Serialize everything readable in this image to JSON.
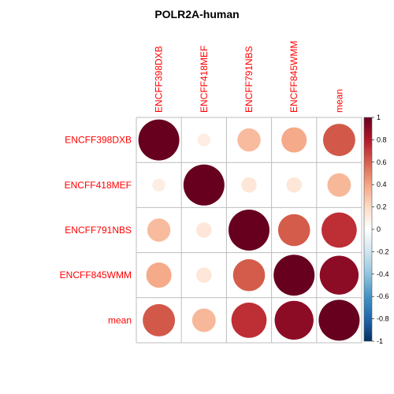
{
  "chart_data": {
    "type": "heatmap",
    "subtype": "correlation-circle",
    "title": "POLR2A-human",
    "row_labels": [
      "ENCFF398DXB",
      "ENCFF418MEF",
      "ENCFF791NBS",
      "ENCFF845WMM",
      "mean"
    ],
    "col_labels": [
      "ENCFF398DXB",
      "ENCFF418MEF",
      "ENCFF791NBS",
      "ENCFF845WMM",
      "mean"
    ],
    "values": [
      [
        1.0,
        0.1,
        0.32,
        0.38,
        0.62
      ],
      [
        0.1,
        1.0,
        0.14,
        0.14,
        0.33
      ],
      [
        0.32,
        0.14,
        1.0,
        0.61,
        0.74
      ],
      [
        0.38,
        0.14,
        0.61,
        1.0,
        0.9
      ],
      [
        0.62,
        0.33,
        0.74,
        0.9,
        1.0
      ]
    ],
    "value_range": [
      -1,
      1
    ],
    "colorbar": {
      "ticks": [
        "1",
        "0.8",
        "0.6",
        "0.4",
        "0.2",
        "0",
        "-0.2",
        "-0.4",
        "-0.6",
        "-0.8",
        "-1"
      ],
      "colors": [
        "#67001F",
        "#B2182B",
        "#D6604D",
        "#F4A582",
        "#FDDBC7",
        "#FFFFFF",
        "#D1E5F0",
        "#92C5DE",
        "#4393C3",
        "#2166AC",
        "#053061"
      ]
    },
    "label_color": "#FF0000",
    "grid": true,
    "legend_position": "right"
  }
}
